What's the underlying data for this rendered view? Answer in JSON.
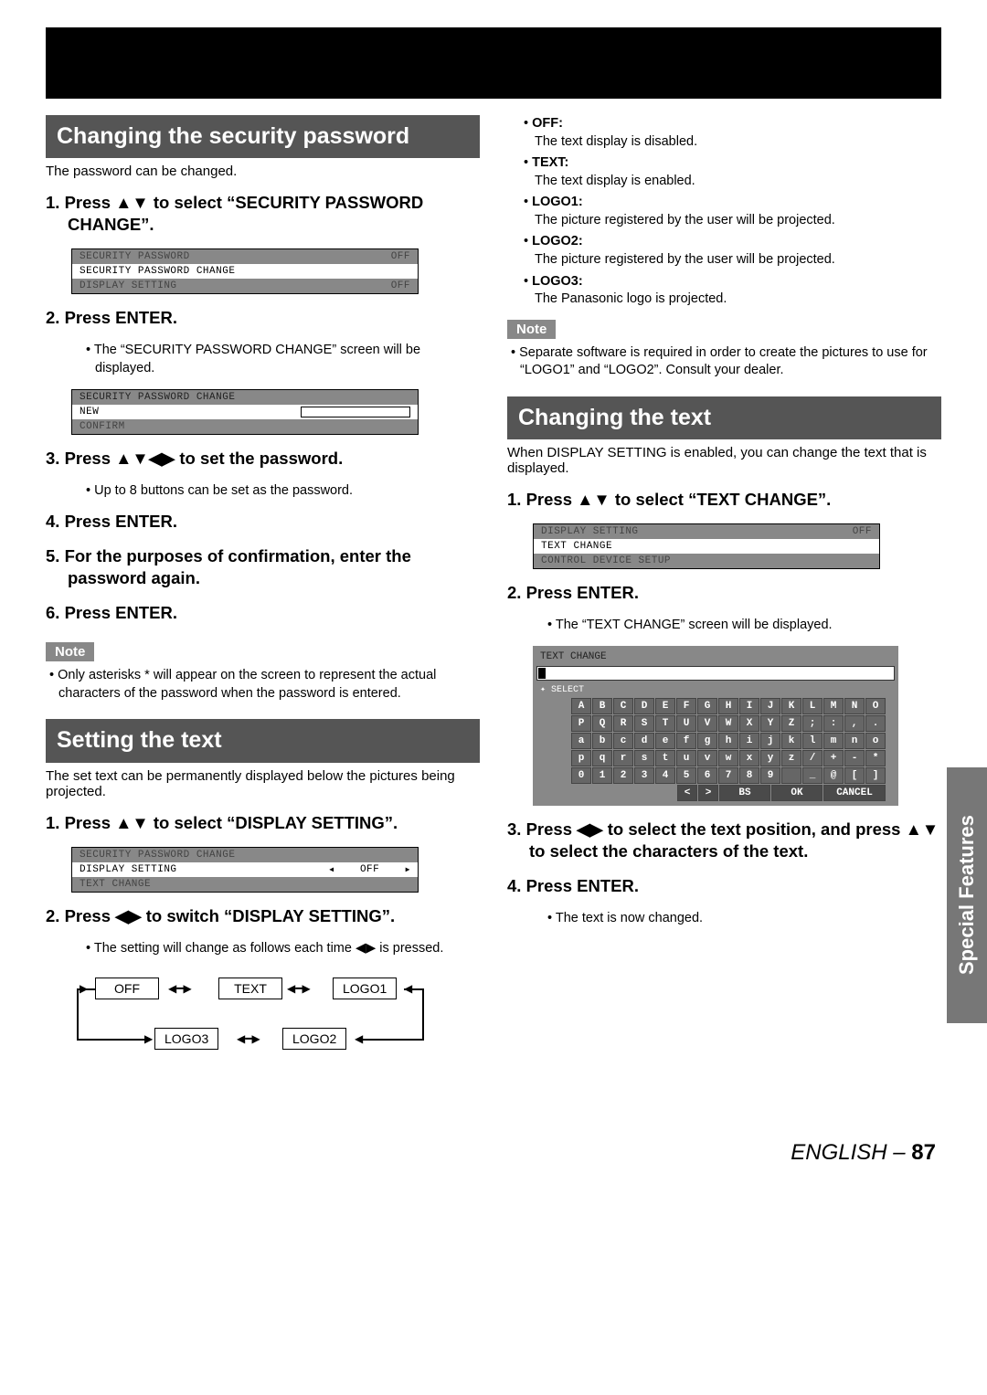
{
  "leftCol": {
    "section1": {
      "title": "Changing the security password",
      "intro": "The password can be changed.",
      "step1": "Press ▲▼ to select “SECURITY PASSWORD CHANGE”.",
      "menu1": {
        "r1_l": "SECURITY PASSWORD",
        "r1_r": "OFF",
        "r2_l": "SECURITY PASSWORD CHANGE",
        "r3_l": "DISPLAY SETTING",
        "r3_r": "OFF"
      },
      "step2": "Press ENTER.",
      "step2_sub": "• The “SECURITY PASSWORD CHANGE” screen will be displayed.",
      "menu2": {
        "r1_l": "SECURITY PASSWORD CHANGE",
        "r2_l": "NEW",
        "r3_l": "CONFIRM"
      },
      "step3": "Press ▲▼◀▶ to set the password.",
      "step3_sub": "• Up to 8 buttons can be set as the password.",
      "step4": "Press ENTER.",
      "step5": "For the purposes of confirmation, enter the password again.",
      "step6": "Press ENTER.",
      "note_label": "Note",
      "note": "• Only asterisks * will appear on the screen to represent the actual characters of the password when the password is entered."
    },
    "section2": {
      "title": "Setting the text",
      "intro": "The set text can be permanently displayed below the pictures being projected.",
      "step1": "Press ▲▼ to select “DISPLAY SETTING”.",
      "menu1": {
        "r1_l": "SECURITY PASSWORD CHANGE",
        "r2_l": "DISPLAY SETTING",
        "r2_r": "OFF",
        "r3_l": "TEXT CHANGE"
      },
      "step2": "Press ◀▶ to switch “DISPLAY SETTING”.",
      "step2_sub": "• The setting will change as follows each time ◀▶ is pressed.",
      "flow": {
        "b1": "OFF",
        "b2": "TEXT",
        "b3": "LOGO1",
        "b4": "LOGO3",
        "b5": "LOGO2"
      }
    }
  },
  "rightCol": {
    "options": [
      {
        "label": "OFF:",
        "desc": "The text display is disabled."
      },
      {
        "label": "TEXT:",
        "desc": "The text display is enabled."
      },
      {
        "label": "LOGO1:",
        "desc": "The picture registered by the user will be projected."
      },
      {
        "label": "LOGO2:",
        "desc": "The picture registered by the user will be projected."
      },
      {
        "label": "LOGO3:",
        "desc": "The Panasonic logo is projected."
      }
    ],
    "note_label": "Note",
    "note": "• Separate software is required in order to create the pictures to use for “LOGO1” and “LOGO2”. Consult your dealer.",
    "section3": {
      "title": "Changing the text",
      "intro": "When DISPLAY SETTING is enabled, you can change the text that is displayed.",
      "step1": "Press ▲▼ to select “TEXT CHANGE”.",
      "menu1": {
        "r1_l": "DISPLAY SETTING",
        "r1_r": "OFF",
        "r2_l": "TEXT CHANGE",
        "r3_l": "CONTROL DEVICE SETUP"
      },
      "step2": "Press ENTER.",
      "step2_sub": "• The “TEXT CHANGE” screen will be displayed.",
      "kb": {
        "header": "TEXT CHANGE",
        "select": "SELECT",
        "rows": [
          [
            "A",
            "B",
            "C",
            "D",
            "E",
            "F",
            "G",
            "H",
            "I",
            "J",
            "K",
            "L",
            "M",
            "N",
            "O"
          ],
          [
            "P",
            "Q",
            "R",
            "S",
            "T",
            "U",
            "V",
            "W",
            "X",
            "Y",
            "Z",
            ";",
            ":",
            ",",
            "."
          ],
          [
            "a",
            "b",
            "c",
            "d",
            "e",
            "f",
            "g",
            "h",
            "i",
            "j",
            "k",
            "l",
            "m",
            "n",
            "o"
          ],
          [
            "p",
            "q",
            "r",
            "s",
            "t",
            "u",
            "v",
            "w",
            "x",
            "y",
            "z",
            "/",
            "+",
            "-",
            "*"
          ],
          [
            "0",
            "1",
            "2",
            "3",
            "4",
            "5",
            "6",
            "7",
            "8",
            "9",
            "",
            "_",
            "@",
            "[",
            "]"
          ]
        ],
        "bottom": [
          "<",
          ">",
          "BS",
          "OK",
          "CANCEL"
        ]
      },
      "step3": "Press ◀▶ to select the text position, and press ▲▼ to select the characters of the text.",
      "step4": "Press ENTER.",
      "step4_sub": "• The text is now changed."
    }
  },
  "sideTab": "Special Features",
  "footer": {
    "lang": "ENGLISH – ",
    "page": "87"
  }
}
